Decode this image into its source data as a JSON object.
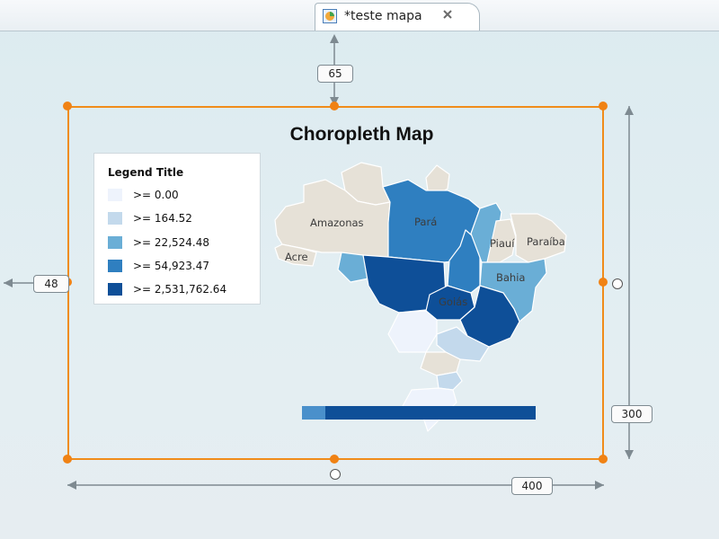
{
  "editor": {
    "tab_label": "*teste mapa"
  },
  "chart_data": {
    "type": "choropleth",
    "title": "Choropleth Map",
    "legend": {
      "title": "Legend Title",
      "items": [
        {
          "label": ">= 0.00",
          "color": "#eef3fc"
        },
        {
          "label": ">= 164.52",
          "color": "#c3d9ec"
        },
        {
          "label": ">= 22,524.48",
          "color": "#6aaed6"
        },
        {
          "label": ">= 54,923.47",
          "color": "#2f7fc0"
        },
        {
          "label": ">= 2,531,762.64",
          "color": "#0e4f98"
        }
      ]
    },
    "region_labels": [
      "Amazonas",
      "Acre",
      "Pará",
      "Piauí",
      "Paraíba",
      "Bahia",
      "Goiás"
    ],
    "colors": {
      "no_data": "#e6e1d7"
    }
  },
  "dimensions": {
    "top_margin": "65",
    "left_margin": "48",
    "height": "300",
    "width": "400"
  },
  "colors": {
    "selection": "#f08214",
    "guide": "#7e8a91"
  }
}
